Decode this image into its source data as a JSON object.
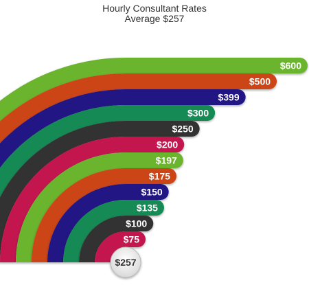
{
  "chart_data": {
    "type": "bar",
    "title": "Hourly Consultant Rates",
    "subtitle": "Average $257",
    "center_label": "$257",
    "categories": [
      "$600",
      "$500",
      "$399",
      "$300",
      "$250",
      "$200",
      "$197",
      "$175",
      "$150",
      "$135",
      "$100",
      "$75"
    ],
    "values": [
      600,
      500,
      399,
      300,
      250,
      200,
      197,
      175,
      150,
      135,
      100,
      75
    ],
    "colors": [
      "#6ab42e",
      "#cc4419",
      "#221885",
      "#138a54",
      "#333333",
      "#c3154f",
      "#6ab42e",
      "#cc4419",
      "#221885",
      "#138a54",
      "#333333",
      "#c3154f"
    ],
    "xlabel": "",
    "ylabel": "",
    "grid": false,
    "legend": "none"
  }
}
